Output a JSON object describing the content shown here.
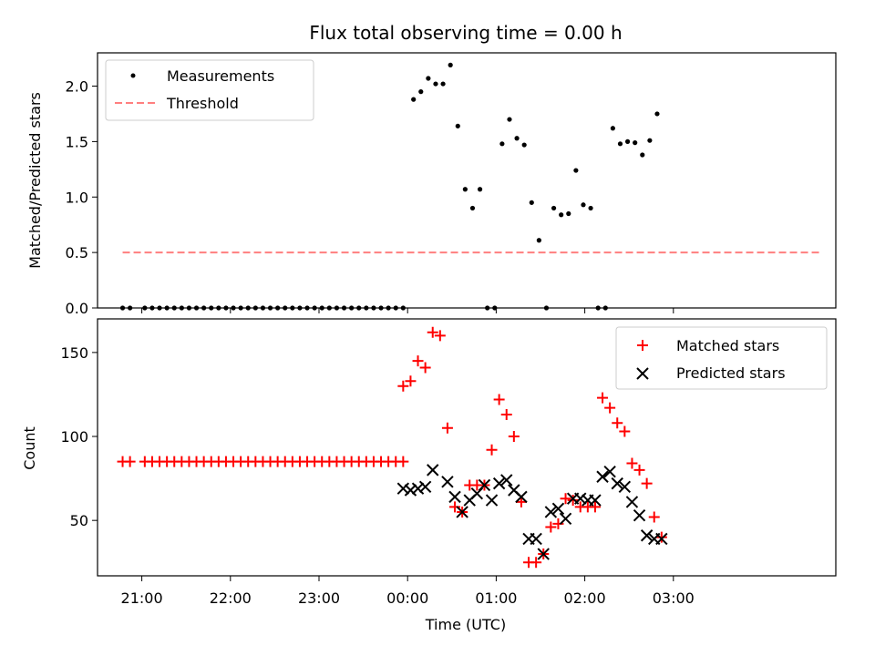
{
  "chart_data": [
    {
      "type": "scatter",
      "title": "Flux total observing time = 0.00 h",
      "xlabel": "",
      "ylabel": "Matched/Predicted stars",
      "xlim": [
        -210,
        290
      ],
      "ylim": [
        0,
        2.3
      ],
      "yticks": [
        "0.0",
        "0.5",
        "1.0",
        "1.5",
        "2.0"
      ],
      "grid": false,
      "legend_position": "top-left",
      "x_unit": "minutes from 00:00 UTC",
      "series": [
        {
          "name": "Measurements",
          "color": "#000000",
          "marker": "dot",
          "x": [
            -193,
            -188,
            -178,
            -173,
            -168,
            -163,
            -158,
            -153,
            -148,
            -143,
            -138,
            -133,
            -128,
            -123,
            -118,
            -113,
            -108,
            -103,
            -98,
            -93,
            -88,
            -83,
            -78,
            -73,
            -68,
            -63,
            -58,
            -53,
            -48,
            -43,
            -38,
            -33,
            -28,
            -23,
            -18,
            -13,
            -8,
            -3,
            4,
            9,
            14,
            19,
            24,
            29,
            34,
            39,
            44,
            49,
            54,
            59,
            64,
            69,
            74,
            79,
            84,
            89,
            94,
            99,
            104,
            109,
            114,
            119,
            124,
            129,
            134,
            139,
            144,
            149,
            154,
            159,
            164,
            169
          ],
          "y": [
            0,
            0,
            0,
            0,
            0,
            0,
            0,
            0,
            0,
            0,
            0,
            0,
            0,
            0,
            0,
            0,
            0,
            0,
            0,
            0,
            0,
            0,
            0,
            0,
            0,
            0,
            0,
            0,
            0,
            0,
            0,
            0,
            0,
            0,
            0,
            0,
            0,
            0,
            1.88,
            1.95,
            2.07,
            2.02,
            2.02,
            2.19,
            1.64,
            1.07,
            0.9,
            1.07,
            0.0,
            0.0,
            1.48,
            1.7,
            1.53,
            1.47,
            0.95,
            0.61,
            0.0,
            0.9,
            0.84,
            0.85,
            1.24,
            0.93,
            0.9,
            0.0,
            0.0,
            1.62,
            1.48,
            1.5,
            1.49,
            1.38,
            1.51,
            1.75
          ]
        },
        {
          "name": "Threshold",
          "color": "#ff7f7f",
          "style": "dashed",
          "x": [
            -193,
            279
          ],
          "y": [
            0.5,
            0.5
          ]
        }
      ]
    },
    {
      "type": "scatter",
      "title": "",
      "xlabel": "Time (UTC)",
      "ylabel": "Count",
      "xlim": [
        -210,
        290
      ],
      "ylim": [
        17,
        170
      ],
      "yticks": [
        "50",
        "100",
        "150"
      ],
      "xticks": [
        "21:00",
        "22:00",
        "23:00",
        "00:00",
        "01:00",
        "02:00",
        "03:00"
      ],
      "grid": false,
      "legend_position": "top-right",
      "x_unit": "minutes from 00:00 UTC",
      "series": [
        {
          "name": "Matched stars",
          "color": "#ff0000",
          "marker": "plus",
          "x": [
            -193,
            -188,
            -178,
            -173,
            -168,
            -163,
            -158,
            -153,
            -148,
            -143,
            -138,
            -133,
            -128,
            -123,
            -118,
            -113,
            -108,
            -103,
            -98,
            -93,
            -88,
            -83,
            -78,
            -73,
            -68,
            -63,
            -58,
            -53,
            -48,
            -43,
            -38,
            -33,
            -28,
            -23,
            -18,
            -13,
            -8,
            -3,
            -3,
            2,
            7,
            12,
            17,
            22,
            27,
            32,
            37,
            42,
            47,
            52,
            57,
            62,
            67,
            72,
            77,
            82,
            87,
            92,
            97,
            102,
            107,
            112,
            117,
            122,
            127,
            132,
            137,
            142,
            147,
            152,
            157,
            162,
            167,
            172
          ],
          "y": [
            85,
            85,
            85,
            85,
            85,
            85,
            85,
            85,
            85,
            85,
            85,
            85,
            85,
            85,
            85,
            85,
            85,
            85,
            85,
            85,
            85,
            85,
            85,
            85,
            85,
            85,
            85,
            85,
            85,
            85,
            85,
            85,
            85,
            85,
            85,
            85,
            85,
            85,
            130,
            133,
            145,
            141,
            162,
            160,
            105,
            58,
            55,
            71,
            71,
            71,
            92,
            122,
            113,
            100,
            61,
            25,
            25,
            30,
            46,
            48,
            63,
            62,
            58,
            58,
            58,
            123,
            117,
            108,
            103,
            84,
            80,
            72,
            52,
            40
          ]
        },
        {
          "name": "Predicted stars",
          "color": "#000000",
          "marker": "x",
          "x": [
            -3,
            2,
            7,
            12,
            17,
            27,
            32,
            37,
            42,
            47,
            52,
            57,
            62,
            67,
            72,
            77,
            82,
            87,
            92,
            97,
            102,
            107,
            112,
            117,
            122,
            127,
            132,
            137,
            142,
            147,
            152,
            157,
            162,
            167,
            172
          ],
          "y": [
            69,
            68,
            69,
            70,
            80,
            73,
            64,
            55,
            62,
            66,
            71,
            62,
            72,
            74,
            68,
            64,
            39,
            39,
            30,
            55,
            57,
            51,
            63,
            63,
            62,
            62,
            76,
            79,
            72,
            70,
            61,
            53,
            41,
            39,
            39
          ]
        }
      ]
    }
  ]
}
